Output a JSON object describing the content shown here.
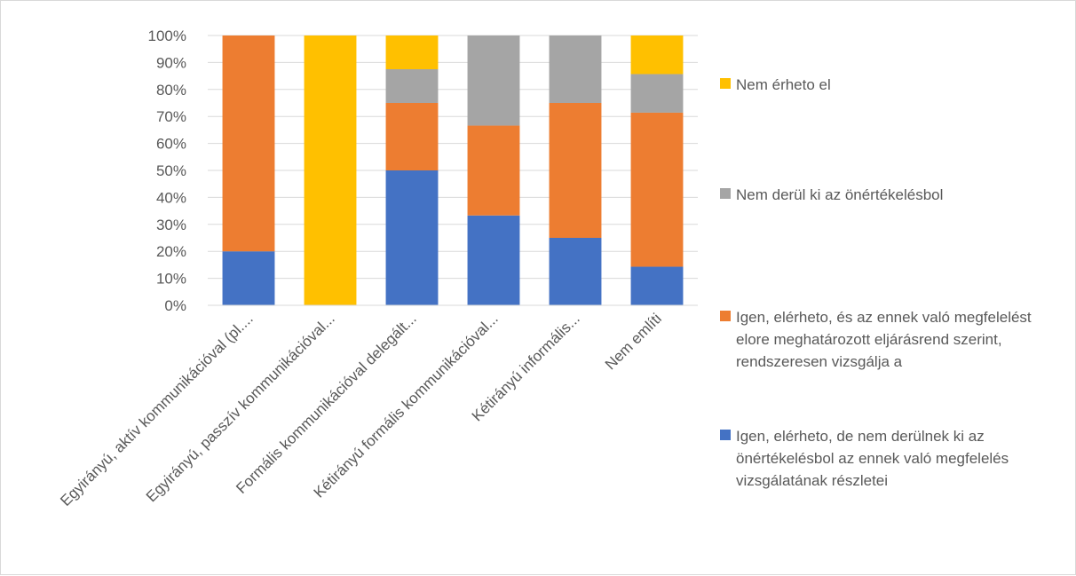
{
  "chart_data": {
    "type": "bar",
    "stacked": true,
    "percent": true,
    "categories": [
      "Egyirányú, aktív kommunikációval (pl....",
      "Egyirányú, passzív kommunikációval...",
      "Formális kommunikációval delegált...",
      "Kétirányú formális kommunikációval...",
      "Kétirányú informális...",
      "Nem említi"
    ],
    "series": [
      {
        "name": "Igen, elérheto, de nem derülnek ki az önértékelésbol az ennek való megfelelés vizsgálatának részletei",
        "color": "#4472C4",
        "values": [
          20,
          0,
          50,
          33.3,
          25,
          14.3
        ]
      },
      {
        "name": "Igen, elérheto, és az ennek való megfelelést elore meghatározott eljárásrend szerint, rendszeresen vizsgálja a",
        "color": "#ED7D31",
        "values": [
          80,
          0,
          25,
          33.3,
          50,
          57.1
        ]
      },
      {
        "name": "Nem derül ki az önértékelésbol",
        "color": "#A5A5A5",
        "values": [
          0,
          0,
          12.5,
          33.4,
          25,
          14.3
        ]
      },
      {
        "name": "Nem érheto el",
        "color": "#FFC000",
        "values": [
          0,
          100,
          12.5,
          0,
          0,
          14.3
        ]
      }
    ],
    "yticks": [
      "0%",
      "10%",
      "20%",
      "30%",
      "40%",
      "50%",
      "60%",
      "70%",
      "80%",
      "90%",
      "100%"
    ],
    "ylim": [
      0,
      100
    ],
    "grid": true,
    "legend_position": "right",
    "title": "",
    "xlabel": "",
    "ylabel": ""
  }
}
